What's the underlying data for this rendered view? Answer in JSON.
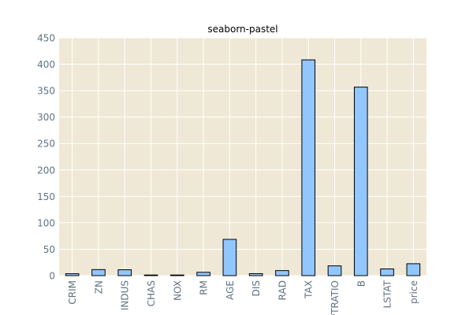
{
  "chart_data": {
    "type": "bar",
    "title": "seaborn-pastel",
    "xlabel": "",
    "ylabel": "",
    "categories": [
      "CRIM",
      "ZN",
      "INDUS",
      "CHAS",
      "NOX",
      "RM",
      "AGE",
      "DIS",
      "RAD",
      "TAX",
      "PTRATIO",
      "B",
      "LSTAT",
      "price"
    ],
    "values": [
      3.6,
      11.4,
      11.1,
      0.07,
      0.55,
      6.3,
      68.6,
      3.8,
      9.5,
      408.2,
      18.5,
      356.7,
      12.7,
      22.5
    ],
    "ylim": [
      0,
      450
    ],
    "yticks": [
      0,
      50,
      100,
      150,
      200,
      250,
      300,
      350,
      400,
      450
    ],
    "grid": true,
    "colors": {
      "bar_fill": "#92c6ff",
      "bar_edge": "#000000",
      "plot_background": "#efe8d6",
      "grid": "#ffffff",
      "tick_text": "#5f7382"
    }
  }
}
